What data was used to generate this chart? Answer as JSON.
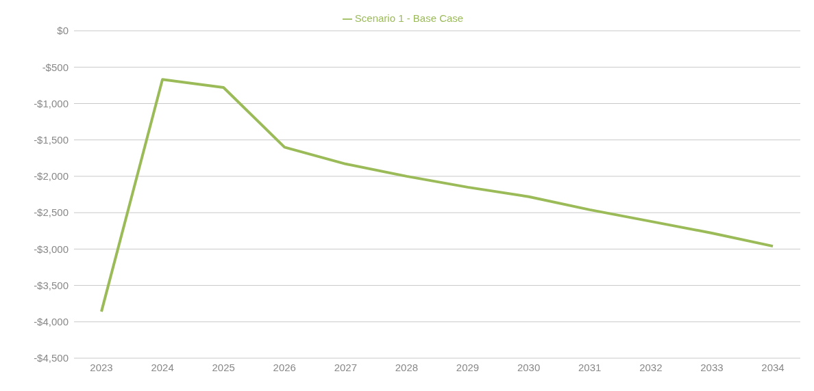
{
  "chart_data": {
    "type": "line",
    "categories": [
      "2023",
      "2024",
      "2025",
      "2026",
      "2027",
      "2028",
      "2029",
      "2030",
      "2031",
      "2032",
      "2033",
      "2034"
    ],
    "series": [
      {
        "name": "Scenario 1 - Base Case",
        "color": "#9bbb59",
        "values": [
          -3860,
          -670,
          -780,
          -1600,
          -1830,
          -2000,
          -2150,
          -2280,
          -2460,
          -2620,
          -2780,
          -2960
        ]
      }
    ],
    "ylim": [
      -4500,
      0
    ],
    "yticks": [
      {
        "value": -4500,
        "label": "-$4,500"
      },
      {
        "value": -4000,
        "label": "-$4,000"
      },
      {
        "value": -3500,
        "label": "-$3,500"
      },
      {
        "value": -3000,
        "label": "-$3,000"
      },
      {
        "value": -2500,
        "label": "-$2,500"
      },
      {
        "value": -2000,
        "label": "-$2,000"
      },
      {
        "value": -1500,
        "label": "-$1,500"
      },
      {
        "value": -1000,
        "label": "-$1,000"
      },
      {
        "value": -500,
        "label": "-$500"
      },
      {
        "value": 0,
        "label": "$0"
      }
    ],
    "grid": "y",
    "legend": "top",
    "marker": "none",
    "line_style": "solid"
  }
}
